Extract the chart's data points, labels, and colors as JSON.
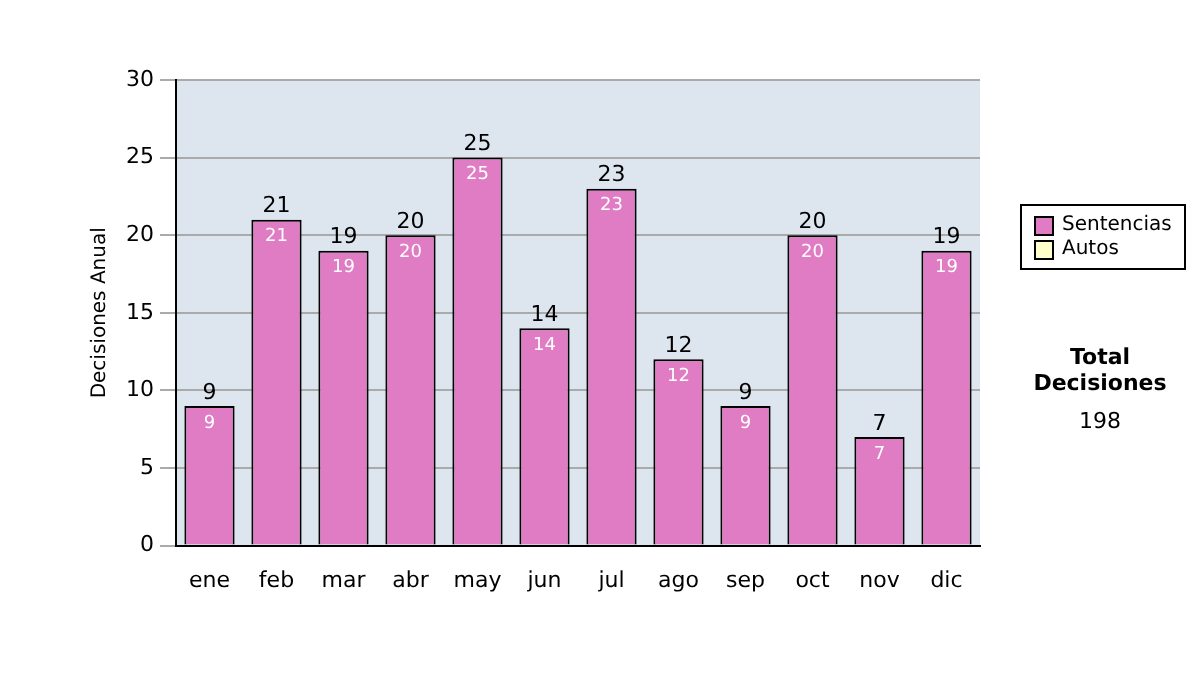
{
  "chart_data": {
    "type": "bar",
    "stacked": true,
    "ylabel": "Decisiones Anual",
    "categories": [
      "ene",
      "feb",
      "mar",
      "abr",
      "may",
      "jun",
      "jul",
      "ago",
      "sep",
      "oct",
      "nov",
      "dic"
    ],
    "series": [
      {
        "name": "Sentencias",
        "color": "#e07cc4",
        "values": [
          9,
          21,
          19,
          20,
          25,
          14,
          23,
          12,
          9,
          20,
          7,
          19
        ],
        "value_labels": [
          "9",
          "21",
          "19",
          "20",
          "25",
          "14",
          "23",
          "12",
          "9",
          "20",
          "7",
          "19"
        ]
      },
      {
        "name": "Autos",
        "color": "#ffffcc",
        "values": [
          0,
          0,
          0,
          0,
          0,
          0,
          0,
          0,
          0,
          0,
          0,
          0
        ]
      }
    ],
    "totals": [
      "9",
      "21",
      "19",
      "20",
      "25",
      "14",
      "23",
      "12",
      "9",
      "20",
      "7",
      "19"
    ],
    "ylim": [
      0,
      30
    ],
    "yticks": [
      0,
      5,
      10,
      15,
      20,
      25,
      30
    ],
    "grid": "y",
    "legend": "right",
    "annotations": [
      "Total Decisiones",
      "198"
    ]
  }
}
